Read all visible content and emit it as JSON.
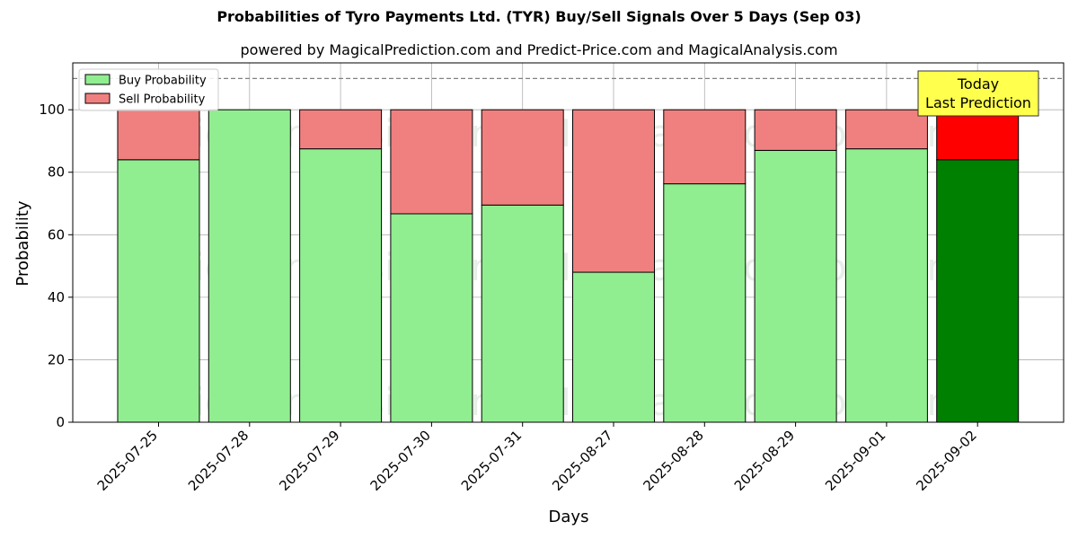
{
  "chart_data": {
    "type": "bar",
    "stacked": true,
    "title": "Probabilities of Tyro Payments Ltd. (TYR) Buy/Sell Signals Over 5 Days (Sep 03)",
    "subtitle": "powered by MagicalPrediction.com and Predict-Price.com and MagicalAnalysis.com",
    "xlabel": "Days",
    "ylabel": "Probability",
    "ylim": [
      0,
      115
    ],
    "yticks": [
      0,
      20,
      40,
      60,
      80,
      100
    ],
    "grid": true,
    "legend_position": "top-left",
    "categories": [
      "2025-07-25",
      "2025-07-28",
      "2025-07-29",
      "2025-07-30",
      "2025-07-31",
      "2025-08-27",
      "2025-08-28",
      "2025-08-29",
      "2025-09-01",
      "2025-09-02"
    ],
    "series": [
      {
        "name": "Buy Probability",
        "color": "#90ee90",
        "highlight_color": "#008000",
        "values": [
          84,
          100,
          87.5,
          66.7,
          69.5,
          48,
          76.3,
          87,
          87.5,
          84
        ]
      },
      {
        "name": "Sell Probability",
        "color": "#f08080",
        "highlight_color": "#ff0000",
        "values": [
          16,
          0,
          12.5,
          33.3,
          30.5,
          52,
          23.7,
          13,
          12.5,
          16
        ]
      }
    ],
    "highlight_index": 9,
    "reference_line": {
      "y": 110,
      "style": "dashed",
      "color": "#808080"
    },
    "annotation": {
      "lines": [
        "Today",
        "Last Prediction"
      ],
      "background": "#ffff4d"
    },
    "watermarks": [
      "MagicalAnalysis.com",
      "MagicalPrediction.com"
    ]
  }
}
